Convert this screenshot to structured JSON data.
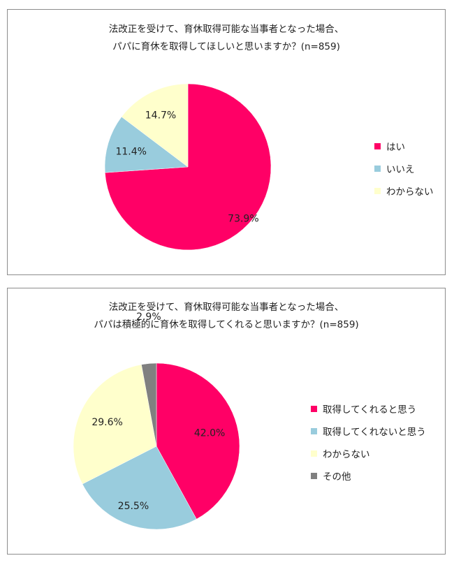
{
  "chart_data": [
    {
      "type": "pie",
      "title_lines": [
        "法改正を受けて、育休取得可能な当事者となった場合、",
        "パパに育休を取得してほしいと思いますか？(n=859)"
      ],
      "categories": [
        "はい",
        "いいえ",
        "わからない"
      ],
      "values": [
        73.9,
        11.4,
        14.7
      ],
      "labels": [
        "73.9%",
        "11.4%",
        "14.7%"
      ],
      "colors": [
        "#ff0066",
        "#99ccdd",
        "#ffffcc"
      ],
      "legend_position": "right"
    },
    {
      "type": "pie",
      "title_lines": [
        "法改正を受けて、育休取得可能な当事者となった場合、",
        "パパは積極的に育休を取得してくれると思いますか？(n=859)"
      ],
      "categories": [
        "取得してくれると思う",
        "取得してくれないと思う",
        "わからない",
        "その他"
      ],
      "values": [
        42.0,
        25.5,
        29.6,
        2.9
      ],
      "labels": [
        "42.0%",
        "25.5%",
        "29.6%",
        "2.9%"
      ],
      "colors": [
        "#ff0066",
        "#99ccdd",
        "#ffffcc",
        "#808080"
      ],
      "legend_position": "right"
    }
  ]
}
